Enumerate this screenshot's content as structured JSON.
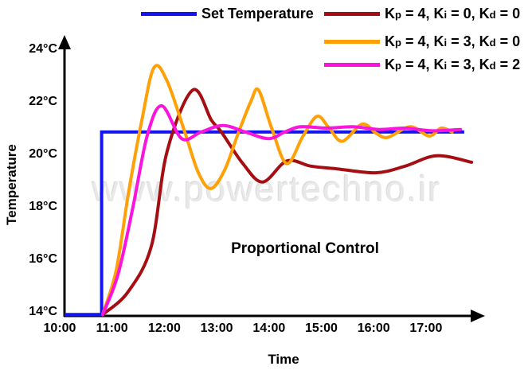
{
  "watermark": "www.powertechno.ir",
  "legend": {
    "items": [
      {
        "id": "set-temperature",
        "color": "#1414EE",
        "parts": [
          [
            "Set Temperature",
            ""
          ]
        ]
      },
      {
        "id": "kp4-ki0-kd0",
        "color": "#A50E13",
        "parts": [
          [
            "K",
            ""
          ],
          [
            "p",
            "sub"
          ],
          [
            " = 4, K",
            ""
          ],
          [
            "i",
            "sub"
          ],
          [
            " = 0, K",
            ""
          ],
          [
            "d",
            "sub"
          ],
          [
            " = 0",
            ""
          ]
        ]
      },
      {
        "id": "kp4-ki3-kd0",
        "color": "#FFA007",
        "parts": [
          [
            "K",
            ""
          ],
          [
            "p",
            "sub"
          ],
          [
            " = 4, K",
            ""
          ],
          [
            "i",
            "sub"
          ],
          [
            " = 3, K",
            ""
          ],
          [
            "d",
            "sub"
          ],
          [
            " = 0",
            ""
          ]
        ]
      },
      {
        "id": "kp4-ki3-kd2",
        "color": "#FA14DC",
        "parts": [
          [
            "K",
            ""
          ],
          [
            "p",
            "sub"
          ],
          [
            " = 4, K",
            ""
          ],
          [
            "i",
            "sub"
          ],
          [
            " = 3, K",
            ""
          ],
          [
            "d",
            "sub"
          ],
          [
            " = 2",
            ""
          ]
        ]
      }
    ]
  },
  "chart_data": {
    "type": "line",
    "title": "Proportional Control",
    "xlabel": "Time",
    "ylabel": "Temperature",
    "grid": false,
    "legend_position": "top",
    "xlim_hours": [
      10,
      18
    ],
    "ylim_celsius": [
      13.5,
      24.5
    ],
    "set_temperature_c": 20.85,
    "initial_temperature_c": 14,
    "x_ticks": [
      {
        "label": "10:00",
        "t": 10
      },
      {
        "label": "11:00",
        "t": 11
      },
      {
        "label": "12:00",
        "t": 12
      },
      {
        "label": "13:00",
        "t": 13
      },
      {
        "label": "14:00",
        "t": 14
      },
      {
        "label": "15:00",
        "t": 15
      },
      {
        "label": "16:00",
        "t": 16
      },
      {
        "label": "17:00",
        "t": 17
      }
    ],
    "y_ticks": [
      {
        "label": "24°C",
        "value": 24
      },
      {
        "label": "22°C",
        "value": 22
      },
      {
        "label": "20°C",
        "value": 20
      },
      {
        "label": "18°C",
        "value": 18
      },
      {
        "label": "16°C",
        "value": 16
      },
      {
        "label": "14°C",
        "value": 14
      }
    ],
    "series": [
      {
        "id": "set-temperature",
        "name": "Set Temperature",
        "color": "#1414EE",
        "smooth": false,
        "points": [
          [
            10.09,
            13.9
          ],
          [
            10.8,
            13.9
          ],
          [
            10.8,
            20.85
          ],
          [
            17.73,
            20.85
          ]
        ]
      },
      {
        "id": "kp4-ki0-kd0",
        "name": "Kp = 4, Ki = 0, Kd = 0",
        "color": "#A50E13",
        "smooth": true,
        "points": [
          [
            10.82,
            13.9
          ],
          [
            11.3,
            14.75
          ],
          [
            11.75,
            16.5
          ],
          [
            12.05,
            20.1
          ],
          [
            12.54,
            22.45
          ],
          [
            12.9,
            21.3
          ],
          [
            13.09,
            20.85
          ],
          [
            13.5,
            19.65
          ],
          [
            13.88,
            18.95
          ],
          [
            14.34,
            19.75
          ],
          [
            14.8,
            19.55
          ],
          [
            15.3,
            19.45
          ],
          [
            16.04,
            19.3
          ],
          [
            16.6,
            19.55
          ],
          [
            17.2,
            19.95
          ],
          [
            17.87,
            19.7
          ]
        ]
      },
      {
        "id": "kp4-ki3-kd0",
        "name": "Kp = 4, Ki = 3, Kd = 0",
        "color": "#FFA007",
        "smooth": true,
        "points": [
          [
            10.82,
            13.9
          ],
          [
            11.08,
            15.6
          ],
          [
            11.32,
            18.6
          ],
          [
            11.57,
            21.3
          ],
          [
            11.8,
            23.3
          ],
          [
            12.05,
            22.8
          ],
          [
            12.39,
            20.85
          ],
          [
            12.65,
            19.3
          ],
          [
            12.89,
            18.7
          ],
          [
            13.15,
            19.4
          ],
          [
            13.42,
            20.85
          ],
          [
            13.65,
            22.0
          ],
          [
            13.8,
            22.45
          ],
          [
            14.05,
            21.0
          ],
          [
            14.34,
            19.65
          ],
          [
            14.65,
            20.7
          ],
          [
            14.92,
            21.45
          ],
          [
            15.15,
            21.0
          ],
          [
            15.4,
            20.5
          ],
          [
            15.78,
            21.15
          ],
          [
            16.05,
            20.8
          ],
          [
            16.27,
            20.65
          ],
          [
            16.7,
            21.05
          ],
          [
            17.06,
            20.7
          ],
          [
            17.29,
            21.0
          ],
          [
            17.5,
            20.85
          ]
        ]
      },
      {
        "id": "kp4-ki3-kd2",
        "name": "Kp = 4, Ki = 3, Kd = 2",
        "color": "#FA14DC",
        "smooth": true,
        "points": [
          [
            10.82,
            13.9
          ],
          [
            11.11,
            15.4
          ],
          [
            11.39,
            17.9
          ],
          [
            11.67,
            20.7
          ],
          [
            11.95,
            21.85
          ],
          [
            12.33,
            20.6
          ],
          [
            12.7,
            20.85
          ],
          [
            13.12,
            21.1
          ],
          [
            13.55,
            20.85
          ],
          [
            13.99,
            20.6
          ],
          [
            14.3,
            20.85
          ],
          [
            14.6,
            21.05
          ],
          [
            15.1,
            21.0
          ],
          [
            15.6,
            21.05
          ],
          [
            16.1,
            20.95
          ],
          [
            16.6,
            21.0
          ],
          [
            17.1,
            20.9
          ],
          [
            17.66,
            20.95
          ]
        ]
      }
    ]
  }
}
